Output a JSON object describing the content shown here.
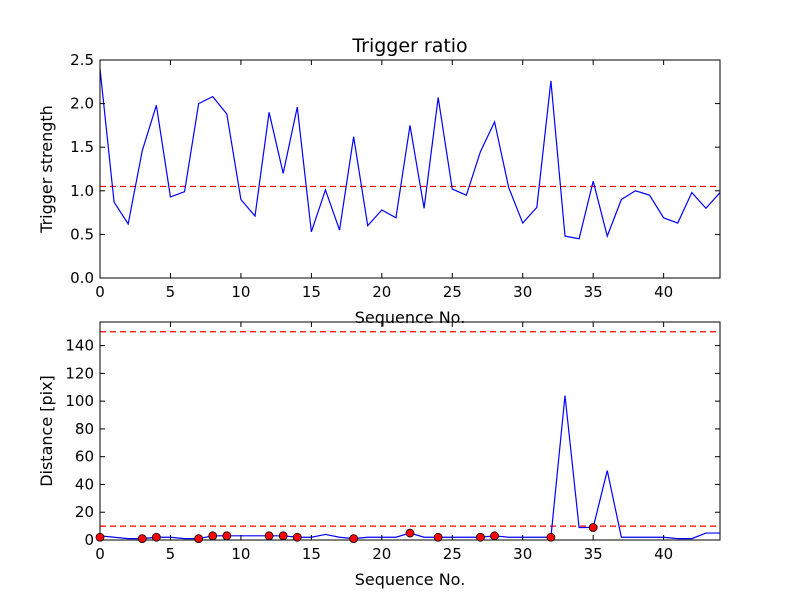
{
  "chart_data": [
    {
      "type": "line",
      "title": "Trigger ratio",
      "xlabel": "Sequence No.",
      "ylabel": "Trigger strength",
      "xlim": [
        0,
        44
      ],
      "ylim": [
        0,
        2.5
      ],
      "xticks": [
        0,
        5,
        10,
        15,
        20,
        25,
        30,
        35,
        40
      ],
      "xtick_labels": [
        "0",
        "5",
        "10",
        "15",
        "20",
        "25",
        "30",
        "35",
        "40"
      ],
      "yticks": [
        0,
        0.5,
        1.0,
        1.5,
        2.0,
        2.5
      ],
      "ytick_labels": [
        "0.0",
        "0.5",
        "1.0",
        "1.5",
        "2.0",
        "2.5"
      ],
      "grid": false,
      "series": [
        {
          "color": "#0000ff",
          "style": "solid",
          "x": [
            0,
            1,
            2,
            3,
            4,
            5,
            6,
            7,
            8,
            9,
            10,
            11,
            12,
            13,
            14,
            15,
            16,
            17,
            18,
            19,
            20,
            21,
            22,
            23,
            24,
            25,
            26,
            27,
            28,
            29,
            30,
            31,
            32,
            33,
            34,
            35,
            36,
            37,
            38,
            39,
            40,
            41,
            42,
            43,
            44
          ],
          "y": [
            2.4,
            0.87,
            0.62,
            1.46,
            1.98,
            0.93,
            0.99,
            2.0,
            2.08,
            1.88,
            0.9,
            0.71,
            1.9,
            1.2,
            1.96,
            0.53,
            1.01,
            0.55,
            1.62,
            0.6,
            0.78,
            0.69,
            1.75,
            0.8,
            2.07,
            1.02,
            0.95,
            1.45,
            1.79,
            1.04,
            0.63,
            0.81,
            2.26,
            0.48,
            0.45,
            1.11,
            0.48,
            0.9,
            1.0,
            0.95,
            0.69,
            0.63,
            0.98,
            0.8,
            0.98
          ]
        }
      ],
      "reference_lines": [
        {
          "y": 1.05,
          "color": "#ff0000",
          "style": "dashed"
        }
      ]
    },
    {
      "type": "line",
      "title": "",
      "xlabel": "Sequence No.",
      "ylabel": "Distance [pix]",
      "xlim": [
        0,
        44
      ],
      "ylim": [
        0,
        157
      ],
      "xticks": [
        0,
        5,
        10,
        15,
        20,
        25,
        30,
        35,
        40
      ],
      "xtick_labels": [
        "0",
        "5",
        "10",
        "15",
        "20",
        "25",
        "30",
        "35",
        "40"
      ],
      "yticks": [
        0,
        20,
        40,
        60,
        80,
        100,
        120,
        140
      ],
      "ytick_labels": [
        "0",
        "20",
        "40",
        "60",
        "80",
        "100",
        "120",
        "140"
      ],
      "grid": false,
      "series": [
        {
          "color": "#0000ff",
          "style": "solid",
          "x": [
            0,
            1,
            2,
            3,
            4,
            5,
            6,
            7,
            8,
            9,
            10,
            11,
            12,
            13,
            14,
            15,
            16,
            17,
            18,
            19,
            20,
            21,
            22,
            23,
            24,
            25,
            26,
            27,
            28,
            29,
            30,
            31,
            32,
            33,
            34,
            35,
            36,
            37,
            38,
            39,
            40,
            41,
            42,
            43,
            44
          ],
          "y": [
            3,
            2,
            1,
            1,
            2,
            2,
            1,
            1,
            3,
            3,
            3,
            3,
            3,
            3,
            2,
            2,
            4,
            2,
            1,
            2,
            2,
            2,
            5,
            2,
            2,
            2,
            2,
            2,
            3,
            2,
            2,
            2,
            2,
            104,
            9,
            9,
            50,
            2,
            2,
            2,
            2,
            1,
            1,
            5,
            5
          ]
        },
        {
          "color": "#ff0000",
          "style": "markers",
          "x": [
            0,
            3,
            4,
            7,
            8,
            9,
            12,
            13,
            14,
            18,
            22,
            24,
            27,
            28,
            32,
            35
          ],
          "y": [
            2,
            1,
            2,
            1,
            3,
            3,
            3,
            3,
            2,
            1,
            5,
            2,
            2,
            3,
            2,
            9
          ]
        }
      ],
      "reference_lines": [
        {
          "y": 150,
          "color": "#ff0000",
          "style": "dashed"
        },
        {
          "y": 10,
          "color": "#ff0000",
          "style": "dashed"
        }
      ]
    }
  ]
}
